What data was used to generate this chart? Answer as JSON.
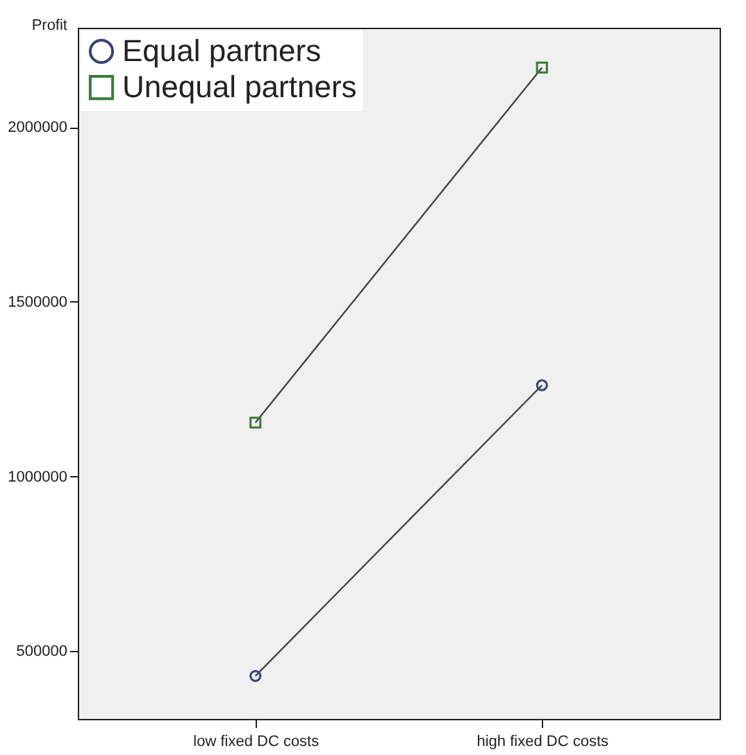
{
  "chart_data": {
    "type": "line",
    "ylabel": "Profit",
    "categories": [
      "low fixed DC costs",
      "high fixed DC costs"
    ],
    "series": [
      {
        "name": "Equal partners",
        "color": "#3c3f73",
        "marker": "circle",
        "values": [
          429000,
          1261000
        ]
      },
      {
        "name": "Unequal partners",
        "color": "#3a7a3a",
        "marker": "square",
        "values": [
          1154000,
          2170000
        ]
      }
    ],
    "ylim": [
      306000,
      2284000
    ],
    "yticks": [
      500000,
      1000000,
      1500000,
      2000000
    ],
    "grid": false,
    "legend": "top left",
    "line_style": "solid"
  }
}
